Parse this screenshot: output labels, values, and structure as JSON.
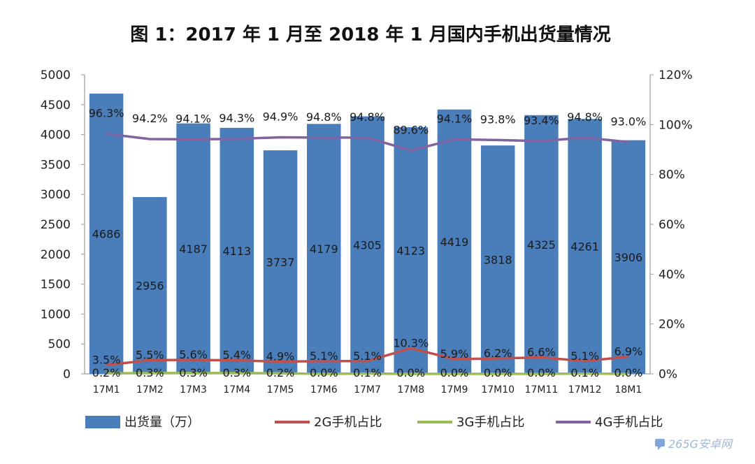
{
  "watermark": "265G安卓网",
  "colors": {
    "bar": "#4A7EBB",
    "series_2g": "#C0504D",
    "series_3g": "#9BBB59",
    "series_4g": "#8064A2",
    "axis": "#9a9a9a",
    "text": "#222222"
  },
  "chart_data": {
    "type": "bar",
    "title": "图 1：2017 年 1 月至 2018 年 1 月国内手机出货量情况",
    "categories": [
      "17M1",
      "17M2",
      "17M3",
      "17M4",
      "17M5",
      "17M6",
      "17M7",
      "17M8",
      "17M9",
      "17M10",
      "17M11",
      "17M12",
      "18M1"
    ],
    "y_left": {
      "range": [
        0,
        5000
      ],
      "ticks": [
        "0",
        "500",
        "1000",
        "1500",
        "2000",
        "2500",
        "3000",
        "3500",
        "4000",
        "4500",
        "5000"
      ]
    },
    "y_right": {
      "range": [
        0,
        120
      ],
      "ticks": [
        "0%",
        "20%",
        "40%",
        "60%",
        "80%",
        "100%",
        "120%"
      ]
    },
    "grid": false,
    "legend_position": "bottom",
    "series": [
      {
        "name": "出货量（万）",
        "type": "bar",
        "axis": "left",
        "values": [
          4686,
          2956,
          4187,
          4113,
          3737,
          4179,
          4305,
          4123,
          4419,
          3818,
          4325,
          4261,
          3906
        ],
        "labels": [
          "4686",
          "2956",
          "4187",
          "4113",
          "3737",
          "4179",
          "4305",
          "4123",
          "4419",
          "3818",
          "4325",
          "4261",
          "3906"
        ]
      },
      {
        "name": "2G手机占比",
        "type": "line",
        "axis": "right",
        "values": [
          3.5,
          5.5,
          5.6,
          5.4,
          4.9,
          5.1,
          5.1,
          10.3,
          5.9,
          6.2,
          6.6,
          5.1,
          6.9
        ],
        "labels": [
          "3.5%",
          "5.5%",
          "5.6%",
          "5.4%",
          "4.9%",
          "5.1%",
          "5.1%",
          "10.3%",
          "5.9%",
          "6.2%",
          "6.6%",
          "5.1%",
          "6.9%"
        ]
      },
      {
        "name": "3G手机占比",
        "type": "line",
        "axis": "right",
        "values": [
          0.2,
          0.3,
          0.3,
          0.3,
          0.2,
          0.0,
          0.1,
          0.0,
          0.0,
          0.0,
          0.0,
          0.1,
          0.0
        ],
        "labels": [
          "0.2%",
          "0.3%",
          "0.3%",
          "0.3%",
          "0.2%",
          "0.0%",
          "0.1%",
          "0.0%",
          "0.0%",
          "0.0%",
          "0.0%",
          "0.1%",
          "0.0%"
        ]
      },
      {
        "name": "4G手机占比",
        "type": "line",
        "axis": "right",
        "values": [
          96.3,
          94.2,
          94.1,
          94.3,
          94.9,
          94.8,
          94.8,
          89.6,
          94.1,
          93.8,
          93.4,
          94.8,
          93.0
        ],
        "labels": [
          "96.3%",
          "94.2%",
          "94.1%",
          "94.3%",
          "94.9%",
          "94.8%",
          "94.8%",
          "89.6%",
          "94.1%",
          "93.8%",
          "93.4%",
          "94.8%",
          "93.0%"
        ]
      }
    ]
  }
}
